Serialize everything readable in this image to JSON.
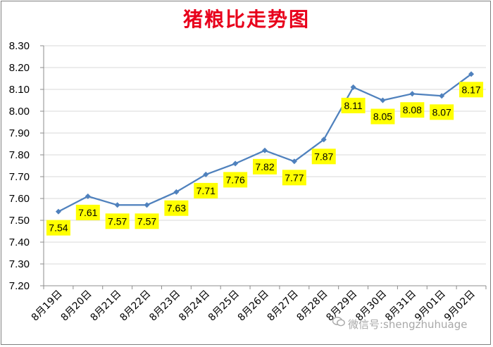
{
  "chart_data": {
    "type": "line",
    "title": "猪粮比走势图",
    "categories": [
      "8月19日",
      "8月20日",
      "8月21日",
      "8月22日",
      "8月23日",
      "8月24日",
      "8月25日",
      "8月26日",
      "8月27日",
      "8月28日",
      "8月29日",
      "8月30日",
      "8月31日",
      "9月01日",
      "9月02日"
    ],
    "series": [
      {
        "values": [
          7.54,
          7.61,
          7.57,
          7.57,
          7.63,
          7.71,
          7.76,
          7.82,
          7.77,
          7.87,
          8.11,
          8.05,
          8.08,
          8.07,
          8.17
        ]
      }
    ],
    "ylim": [
      7.2,
      8.3
    ],
    "yticks": [
      "8.30",
      "8.20",
      "8.10",
      "8.00",
      "7.90",
      "7.80",
      "7.70",
      "7.60",
      "7.50",
      "7.40",
      "7.30",
      "7.20"
    ],
    "data_labels": [
      "7.54",
      "7.61",
      "7.57",
      "7.57",
      "7.63",
      "7.71",
      "7.76",
      "7.82",
      "7.77",
      "7.87",
      "8.11",
      "8.05",
      "8.08",
      "8.07",
      "8.17"
    ],
    "xlabel": "",
    "ylabel": "",
    "grid": "horizontal",
    "legend": "none",
    "colors": {
      "line": "#4f81bd",
      "label_bg": "#ffff00",
      "title": "#e8001c",
      "grid": "#d9d9d9"
    }
  },
  "watermark": {
    "text": "微信号:shengzhuhuage",
    "icon": "wechat-icon"
  }
}
